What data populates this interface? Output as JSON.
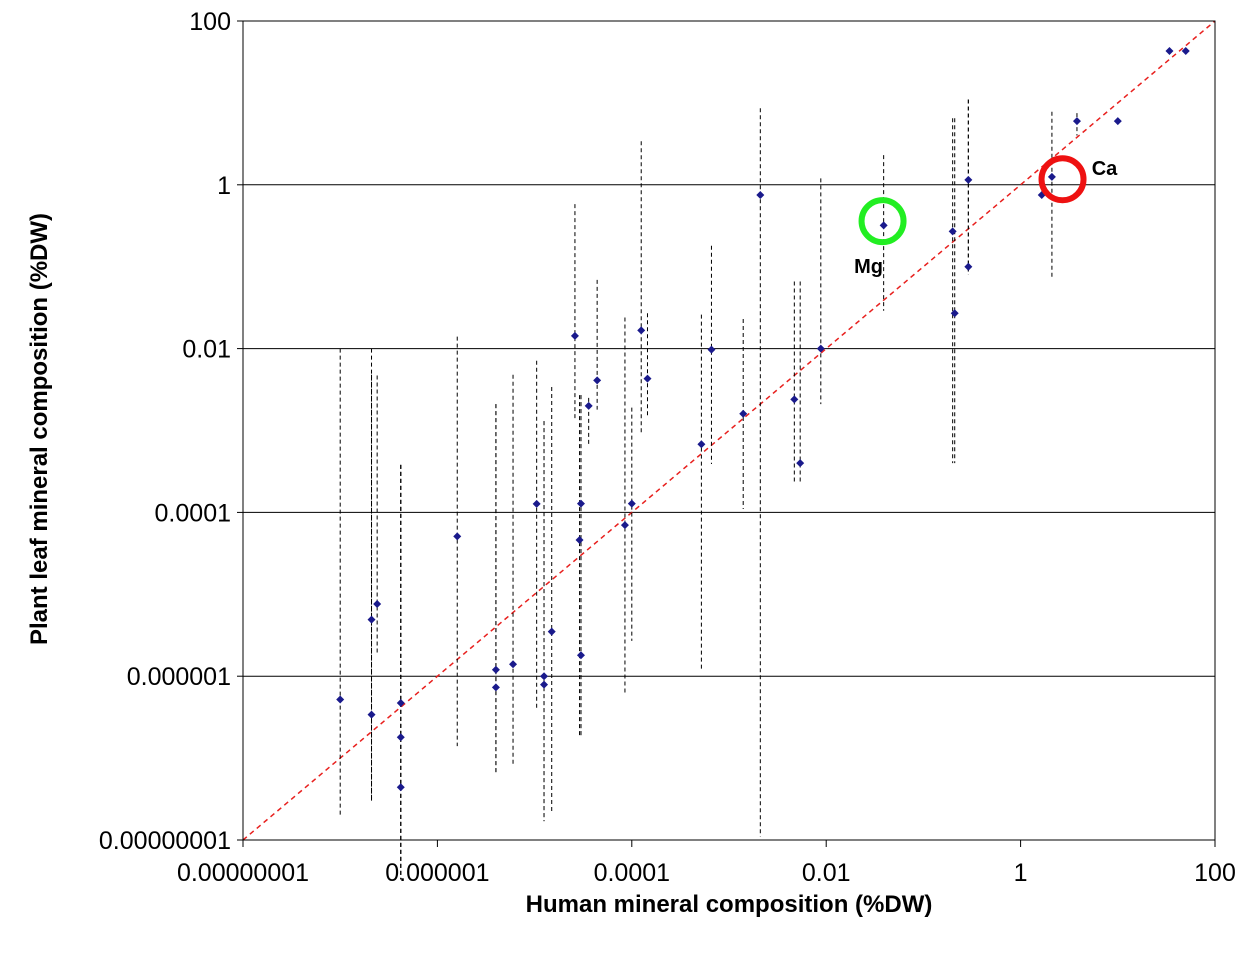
{
  "chart_data": {
    "type": "scatter",
    "title": "",
    "xlabel": "Human mineral composition (%DW)",
    "ylabel": "Plant leaf mineral composition (%DW)",
    "xscale": "log",
    "yscale": "log",
    "xlim": [
      1e-08,
      100
    ],
    "ylim": [
      1e-08,
      100
    ],
    "x_ticks": [
      {
        "value": 1e-08,
        "label": "0.00000001"
      },
      {
        "value": 1e-06,
        "label": "0.000001"
      },
      {
        "value": 0.0001,
        "label": "0.0001"
      },
      {
        "value": 0.01,
        "label": "0.01"
      },
      {
        "value": 1,
        "label": "1"
      },
      {
        "value": 100,
        "label": "100"
      }
    ],
    "y_ticks": [
      {
        "value": 1e-08,
        "label": "0.00000001"
      },
      {
        "value": 1e-06,
        "label": "0.000001"
      },
      {
        "value": 0.0001,
        "label": "0.0001"
      },
      {
        "value": 0.01,
        "label": "0.01"
      },
      {
        "value": 1,
        "label": "1"
      },
      {
        "value": 100,
        "label": "100"
      }
    ],
    "grid": "horizontal",
    "reference_line": {
      "style": "dashed",
      "color": "#e8201e",
      "from": [
        1e-08,
        1e-08
      ],
      "to": [
        100,
        100
      ]
    },
    "points": [
      {
        "x": 1e-07,
        "y": 5.2e-07,
        "y_low": 2e-08,
        "y_high": 0.01
      },
      {
        "x": 2.1e-07,
        "y": 4.9e-06,
        "y_low": 3e-08,
        "y_high": 0.0048
      },
      {
        "x": 2.1e-07,
        "y": 3.4e-07,
        "y_low": 3e-08,
        "y_high": 0.01
      },
      {
        "x": 2.4e-07,
        "y": 7.6e-06,
        "y_low": 1.8e-06,
        "y_high": 0.0047
      },
      {
        "x": 4.2e-07,
        "y": 4.7e-07,
        "y_low": 3.3e-09,
        "y_high": 0.00038
      },
      {
        "x": 4.2e-07,
        "y": 1.8e-07,
        "y_low": 3.3e-09,
        "y_high": 0.00038
      },
      {
        "x": 4.2e-07,
        "y": 4.4e-08,
        "y_low": 3.3e-09,
        "y_high": 0.00038
      },
      {
        "x": 1.6e-06,
        "y": 5.1e-05,
        "y_low": 1.4e-07,
        "y_high": 0.014
      },
      {
        "x": 4e-06,
        "y": 1.2e-06,
        "y_low": 6.5e-08,
        "y_high": 0.0021
      },
      {
        "x": 4e-06,
        "y": 7.3e-07,
        "y_low": 6.5e-08,
        "y_high": 0.0021
      },
      {
        "x": 6e-06,
        "y": 1.4e-06,
        "y_low": 8.5e-08,
        "y_high": 0.0048
      },
      {
        "x": 1.05e-05,
        "y": 0.000127,
        "y_low": 3.8e-07,
        "y_high": 0.0071
      },
      {
        "x": 1.25e-05,
        "y": 1e-06,
        "y_low": 1.7e-08,
        "y_high": 0.0013
      },
      {
        "x": 1.25e-05,
        "y": 7.9e-07,
        "y_low": 1.7e-08,
        "y_high": 0.0013
      },
      {
        "x": 1.5e-05,
        "y": 3.5e-06,
        "y_low": 2.2e-08,
        "y_high": 0.0034
      },
      {
        "x": 2.6e-05,
        "y": 0.0143,
        "y_low": 0.0014,
        "y_high": 0.58
      },
      {
        "x": 2.9e-05,
        "y": 4.6e-05,
        "y_low": 1.9e-07,
        "y_high": 0.0027
      },
      {
        "x": 3e-05,
        "y": 0.000128,
        "y_low": 1.9e-07,
        "y_high": 0.0027
      },
      {
        "x": 3e-05,
        "y": 1.8e-06,
        "y_low": 1.9e-07,
        "y_high": 0.0027
      },
      {
        "x": 3.6e-05,
        "y": 0.002,
        "y_low": 0.00065,
        "y_high": 0.0025
      },
      {
        "x": 4.4e-05,
        "y": 0.0041,
        "y_low": 0.0018,
        "y_high": 0.069
      },
      {
        "x": 8.5e-05,
        "y": 7e-05,
        "y_low": 6e-07,
        "y_high": 0.024
      },
      {
        "x": 0.0001,
        "y": 0.000128,
        "y_low": 2.7e-06,
        "y_high": 0.0019
      },
      {
        "x": 0.000125,
        "y": 0.0167,
        "y_low": 0.00095,
        "y_high": 3.4
      },
      {
        "x": 0.000145,
        "y": 0.0043,
        "y_low": 0.0015,
        "y_high": 0.027
      },
      {
        "x": 0.00052,
        "y": 0.00068,
        "y_low": 1.2e-06,
        "y_high": 0.026
      },
      {
        "x": 0.00066,
        "y": 0.0097,
        "y_low": 0.00039,
        "y_high": 0.18
      },
      {
        "x": 0.0014,
        "y": 0.0016,
        "y_low": 0.00011,
        "y_high": 0.023
      },
      {
        "x": 0.0021,
        "y": 0.75,
        "y_low": 1.1e-08,
        "y_high": 8.6
      },
      {
        "x": 0.0047,
        "y": 0.0024,
        "y_low": 0.00022,
        "y_high": 0.066
      },
      {
        "x": 0.0054,
        "y": 0.0004,
        "y_low": 0.00022,
        "y_high": 0.066
      },
      {
        "x": 0.0088,
        "y": 0.01,
        "y_low": 0.0021,
        "y_high": 1.2
      },
      {
        "x": 0.039,
        "y": 0.32,
        "y_low": 0.029,
        "y_high": 2.3
      },
      {
        "x": 0.2,
        "y": 0.27,
        "y_low": 0.0004,
        "y_high": 6.5
      },
      {
        "x": 0.21,
        "y": 0.027,
        "y_low": 0.0004,
        "y_high": 6.5
      },
      {
        "x": 0.29,
        "y": 1.15,
        "y_low": 0.08,
        "y_high": 11
      },
      {
        "x": 0.29,
        "y": 0.1,
        "y_low": 0.08,
        "y_high": 11
      },
      {
        "x": 1.65,
        "y": 0.75,
        "y_low": 0.77,
        "y_high": 0.76
      },
      {
        "x": 2.1,
        "y": 1.25,
        "y_low": 0.075,
        "y_high": 7.8
      },
      {
        "x": 3.8,
        "y": 6,
        "y_low": 4,
        "y_high": 7.5
      },
      {
        "x": 10,
        "y": 6,
        "y_low": 6,
        "y_high": 6
      },
      {
        "x": 34,
        "y": 43,
        "y_low": 43,
        "y_high": 43
      },
      {
        "x": 50,
        "y": 43,
        "y_low": 43,
        "y_high": 43
      }
    ],
    "annotations": [
      {
        "label": "Mg",
        "circle_color": "#22ee22",
        "x": 0.038,
        "y": 0.36
      },
      {
        "label": "Ca",
        "circle_color": "#ee1111",
        "x": 2.7,
        "y": 1.17
      }
    ],
    "marker_color": "#1a1a8c",
    "errorbar_color": "#000000"
  }
}
